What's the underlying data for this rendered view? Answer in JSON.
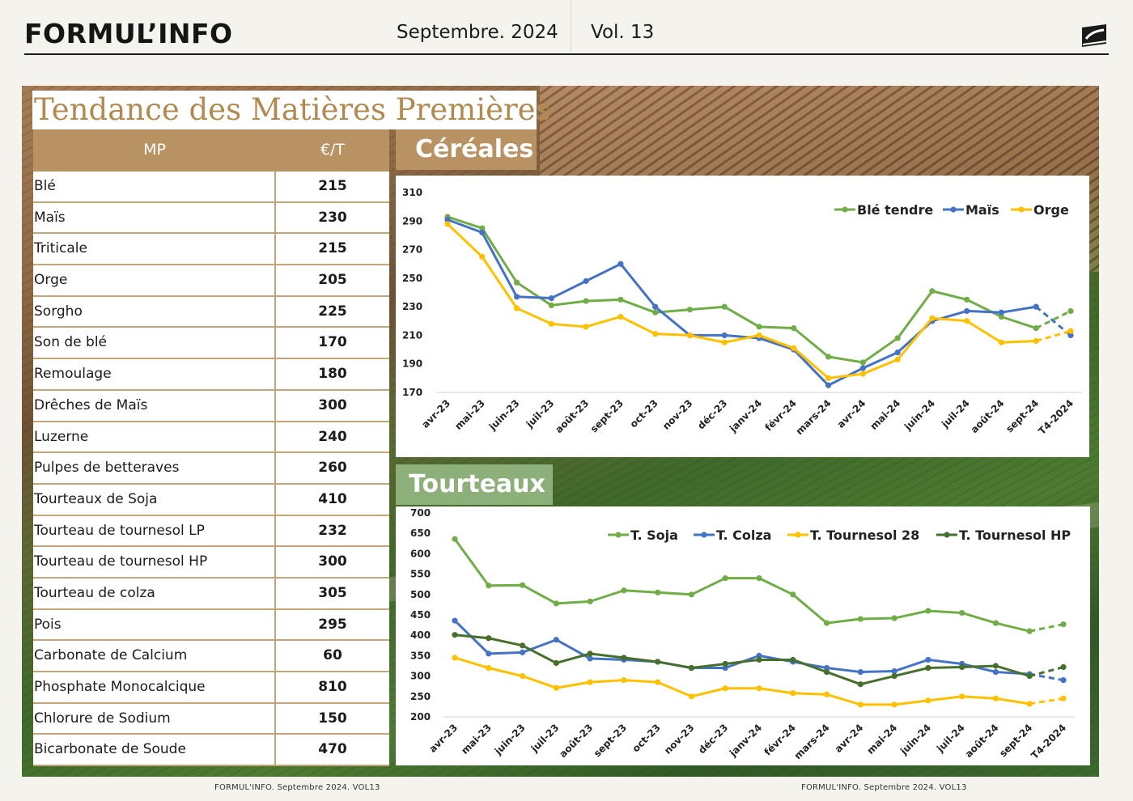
{
  "header": {
    "brand": "FORMUL’INFO",
    "date": "Septembre. 2024",
    "volume": "Vol. 13"
  },
  "title": "Tendance des Matières Premières",
  "table": {
    "headers": [
      "MP",
      "€/T"
    ],
    "rows": [
      {
        "name": "Blé",
        "price": "215"
      },
      {
        "name": "Maïs",
        "price": "230"
      },
      {
        "name": "Triticale",
        "price": "215"
      },
      {
        "name": "Orge",
        "price": "205"
      },
      {
        "name": "Sorgho",
        "price": "225"
      },
      {
        "name": "Son de blé",
        "price": "170"
      },
      {
        "name": "Remoulage",
        "price": "180"
      },
      {
        "name": "Drêches de Maïs",
        "price": "300"
      },
      {
        "name": "Luzerne",
        "price": "240"
      },
      {
        "name": "Pulpes de betteraves",
        "price": "260"
      },
      {
        "name": "Tourteaux de Soja",
        "price": "410"
      },
      {
        "name": "Tourteau de tournesol LP",
        "price": "232"
      },
      {
        "name": "Tourteau de tournesol HP",
        "price": "300"
      },
      {
        "name": "Tourteau de colza",
        "price": "305"
      },
      {
        "name": "Pois",
        "price": "295"
      },
      {
        "name": "Carbonate de Calcium",
        "price": "60"
      },
      {
        "name": "Phosphate Monocalcique",
        "price": "810"
      },
      {
        "name": "Chlorure de Sodium",
        "price": "150"
      },
      {
        "name": "Bicarbonate de Soude",
        "price": "470"
      }
    ]
  },
  "sections": {
    "cereales": "Céréales",
    "tourteaux": "Tourteaux"
  },
  "footer": {
    "left": "FORMUL'INFO. Septembre 2024. VOL13",
    "right": "FORMUL'INFO. Septembre 2024. VOL13"
  },
  "colors": {
    "gold": "#b89262",
    "green": "#70ad47",
    "blue": "#4472c4",
    "yellow": "#ffc000",
    "dark_green": "#476f2c"
  },
  "chart_data": [
    {
      "type": "line",
      "title": "",
      "categories": [
        "avr-23",
        "mai-23",
        "juin-23",
        "juil-23",
        "août-23",
        "sept-23",
        "oct-23",
        "nov-23",
        "déc-23",
        "janv-24",
        "févr-24",
        "mars-24",
        "avr-24",
        "mai-24",
        "juin-24",
        "juil-24",
        "août-24",
        "sept-24",
        "T4-2024"
      ],
      "ylim": [
        170,
        310
      ],
      "yticks": [
        170,
        190,
        210,
        230,
        250,
        270,
        290,
        310
      ],
      "legend_position": "top-right",
      "last_segment_dashed": true,
      "series": [
        {
          "name": "Blé tendre",
          "color": "#70ad47",
          "values": [
            293,
            285,
            247,
            231,
            234,
            235,
            226,
            228,
            230,
            216,
            215,
            195,
            191,
            208,
            241,
            235,
            223,
            215,
            227
          ]
        },
        {
          "name": "Maïs",
          "color": "#4472c4",
          "values": [
            291,
            282,
            237,
            236,
            248,
            260,
            230,
            210,
            210,
            208,
            200,
            175,
            187,
            198,
            220,
            227,
            226,
            230,
            210
          ]
        },
        {
          "name": "Orge",
          "color": "#ffc000",
          "values": [
            288,
            265,
            229,
            218,
            216,
            223,
            211,
            210,
            205,
            210,
            201,
            180,
            183,
            193,
            222,
            220,
            205,
            206,
            213
          ]
        }
      ]
    },
    {
      "type": "line",
      "title": "",
      "categories": [
        "avr-23",
        "mai-23",
        "juin-23",
        "juil-23",
        "août-23",
        "sept-23",
        "oct-23",
        "nov-23",
        "déc-23",
        "janv-24",
        "févr-24",
        "mars-24",
        "avr-24",
        "mai-24",
        "juin-24",
        "juil-24",
        "août-24",
        "sept-24",
        "T4-2024"
      ],
      "ylim": [
        200,
        700
      ],
      "yticks": [
        200,
        250,
        300,
        350,
        400,
        450,
        500,
        550,
        600,
        650,
        700
      ],
      "legend_position": "top-right",
      "last_segment_dashed": true,
      "series": [
        {
          "name": "T. Soja",
          "color": "#70ad47",
          "values": [
            636,
            522,
            523,
            478,
            483,
            510,
            505,
            500,
            540,
            540,
            500,
            430,
            440,
            442,
            460,
            455,
            430,
            410,
            427
          ]
        },
        {
          "name": "T. Colza",
          "color": "#4472c4",
          "values": [
            436,
            355,
            358,
            389,
            343,
            340,
            335,
            320,
            320,
            350,
            335,
            320,
            310,
            312,
            340,
            330,
            310,
            305,
            290
          ]
        },
        {
          "name": "T. Tournesol 28",
          "color": "#ffc000",
          "values": [
            345,
            320,
            300,
            271,
            285,
            290,
            285,
            250,
            270,
            270,
            258,
            255,
            230,
            230,
            240,
            250,
            245,
            232,
            245
          ]
        },
        {
          "name": "T. Tournesol HP",
          "color": "#476f2c",
          "values": [
            401,
            393,
            375,
            332,
            355,
            345,
            335,
            320,
            330,
            340,
            340,
            310,
            280,
            300,
            320,
            322,
            325,
            300,
            322
          ]
        }
      ]
    }
  ]
}
